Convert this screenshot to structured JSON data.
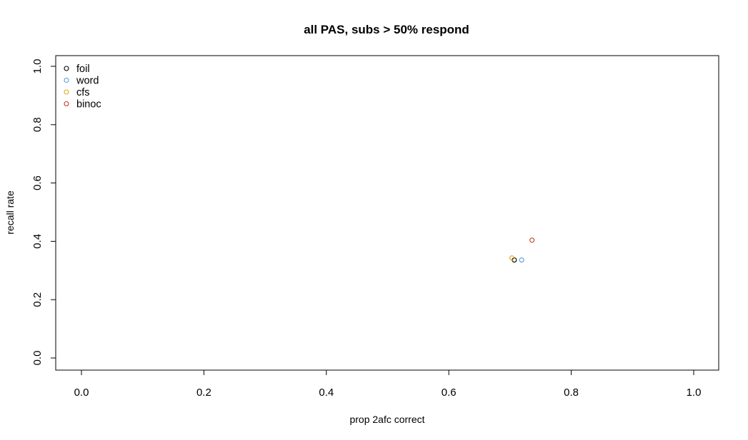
{
  "chart_data": {
    "type": "scatter",
    "title": "all PAS, subs > 50% respond",
    "xlabel": "prop 2afc correct",
    "ylabel": "recall rate",
    "xlim": [
      0.0,
      1.0
    ],
    "ylim": [
      0.0,
      1.0
    ],
    "xticks": [
      "0.0",
      "0.2",
      "0.4",
      "0.6",
      "0.8",
      "1.0"
    ],
    "yticks": [
      "0.0",
      "0.2",
      "0.4",
      "0.6",
      "0.8",
      "1.0"
    ],
    "legend_position": "top-left",
    "grid": false,
    "series": [
      {
        "name": "foil",
        "color": "#000000",
        "points": [
          [
            0.707,
            0.336
          ]
        ]
      },
      {
        "name": "word",
        "color": "#5b9bd5",
        "points": [
          [
            0.719,
            0.336
          ]
        ]
      },
      {
        "name": "cfs",
        "color": "#e6a817",
        "points": [
          [
            0.703,
            0.343
          ]
        ]
      },
      {
        "name": "binoc",
        "color": "#c0392b",
        "points": [
          [
            0.736,
            0.404
          ]
        ]
      }
    ]
  }
}
